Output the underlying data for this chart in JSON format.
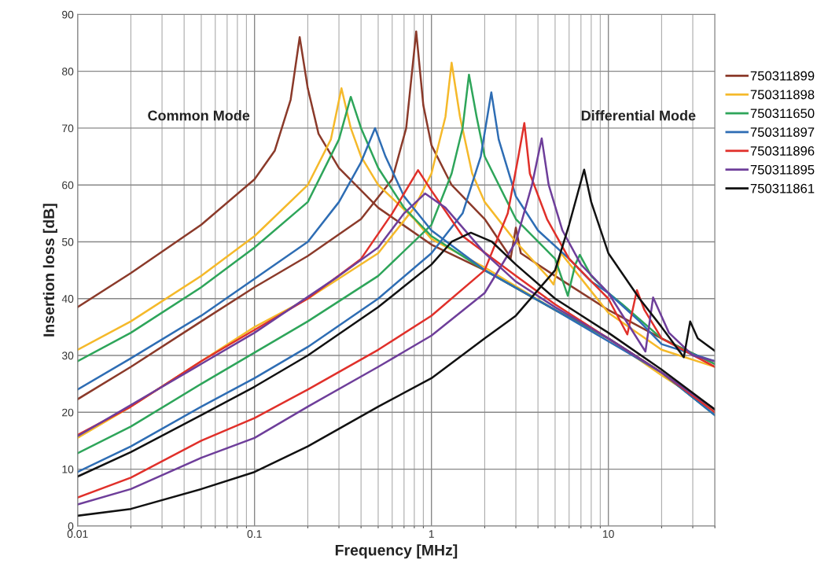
{
  "chart_data": {
    "type": "line",
    "xlabel": "Frequency [MHz]",
    "ylabel": "Insertion loss [dB]",
    "annotations": [
      "Common Mode",
      "Differential Mode"
    ],
    "log": "x",
    "xlim": [
      0.01,
      40
    ],
    "xticks": [
      {
        "value": 0.01,
        "label": "0.01"
      },
      {
        "value": 0.1,
        "label": "0.1"
      },
      1,
      10
    ],
    "ylim": [
      0,
      90
    ],
    "yticks": [
      0,
      10,
      20,
      30,
      40,
      50,
      60,
      70,
      80,
      90
    ],
    "grid": true,
    "legend": "right",
    "marker": "none",
    "line_style": "solid",
    "series": [
      {
        "name": "750311899",
        "color": "#8b3a2a",
        "x": [
          0.01,
          0.02,
          0.05,
          0.1,
          0.13,
          0.16,
          0.18,
          0.2,
          0.23,
          0.3,
          0.5,
          1,
          2,
          5,
          10,
          20,
          40
        ],
        "values": [
          38.5,
          44.5,
          53,
          61,
          66,
          75,
          86,
          77,
          69,
          63,
          56,
          49.5,
          45,
          38,
          33,
          27,
          20.5
        ]
      },
      {
        "color": "#8b3a2a",
        "x": [
          0.01,
          0.02,
          0.05,
          0.1,
          0.2,
          0.4,
          0.6,
          0.72,
          0.82,
          0.9,
          1,
          1.3,
          2,
          2.7,
          2.8,
          3.0,
          3.2,
          5,
          10,
          20,
          40
        ],
        "values": [
          22.3,
          28,
          36,
          42,
          47.5,
          54,
          61,
          70,
          87,
          74,
          67,
          60,
          54,
          48,
          47,
          52.5,
          48,
          44,
          38,
          33,
          28.5
        ]
      },
      {
        "name": "750311898",
        "color": "#f5b92a",
        "x": [
          0.01,
          0.02,
          0.05,
          0.1,
          0.2,
          0.27,
          0.31,
          0.35,
          0.4,
          0.5,
          0.8,
          1,
          2,
          5,
          10,
          20,
          40
        ],
        "values": [
          31,
          36,
          44,
          51,
          60,
          68,
          77,
          70,
          65,
          60,
          54,
          50.5,
          45.5,
          38,
          33,
          26.5,
          20.5
        ]
      },
      {
        "color": "#f5b92a",
        "x": [
          0.01,
          0.02,
          0.05,
          0.1,
          0.2,
          0.5,
          0.8,
          1,
          1.2,
          1.3,
          1.45,
          1.7,
          2,
          3,
          4.5,
          4.9,
          5.4,
          10,
          20,
          40
        ],
        "values": [
          15.5,
          21,
          29,
          35,
          40,
          48,
          56,
          62,
          72,
          81.5,
          72,
          62,
          57,
          50,
          44,
          42.5,
          48,
          37.5,
          31,
          28
        ]
      },
      {
        "name": "750311650",
        "color": "#2ea55a",
        "x": [
          0.01,
          0.02,
          0.05,
          0.1,
          0.2,
          0.3,
          0.35,
          0.4,
          0.5,
          0.7,
          1,
          2,
          5,
          10,
          20,
          40
        ],
        "values": [
          29,
          34,
          42,
          49,
          57,
          68,
          75.5,
          70,
          63,
          56,
          51,
          45,
          38,
          33,
          27,
          19.5
        ]
      },
      {
        "color": "#2ea55a",
        "x": [
          0.01,
          0.02,
          0.05,
          0.1,
          0.2,
          0.5,
          1,
          1.3,
          1.5,
          1.63,
          1.8,
          2,
          3,
          5,
          5.9,
          6.5,
          6.9,
          8,
          10,
          12,
          20,
          40
        ],
        "values": [
          12.8,
          17.5,
          25,
          30.5,
          36,
          44,
          53,
          62,
          70,
          79.4,
          72,
          65,
          54,
          47,
          40.5,
          46,
          47.7,
          44,
          41,
          39,
          33,
          28.5
        ]
      },
      {
        "name": "750311897",
        "color": "#2e6db4",
        "x": [
          0.01,
          0.02,
          0.05,
          0.1,
          0.2,
          0.3,
          0.4,
          0.48,
          0.55,
          0.7,
          1,
          2,
          5,
          10,
          20,
          40
        ],
        "values": [
          24,
          29.5,
          37,
          43.5,
          50,
          57,
          64,
          70,
          65,
          58,
          52,
          45,
          38,
          32.5,
          27,
          19.5
        ]
      },
      {
        "color": "#2e6db4",
        "x": [
          0.01,
          0.02,
          0.05,
          0.1,
          0.2,
          0.5,
          1,
          1.5,
          1.9,
          2.18,
          2.4,
          3,
          4,
          6,
          8,
          10,
          15,
          20,
          40
        ],
        "values": [
          9.5,
          14,
          21,
          26,
          31.5,
          40,
          48,
          55,
          65,
          76.3,
          68,
          58,
          52,
          47,
          43,
          41,
          36,
          32,
          29
        ]
      },
      {
        "name": "750311896",
        "color": "#e0302a",
        "x": [
          0.01,
          0.02,
          0.05,
          0.1,
          0.2,
          0.4,
          0.6,
          0.84,
          1,
          1.5,
          3,
          5,
          10,
          20,
          40
        ],
        "values": [
          16,
          21,
          29,
          34.5,
          40,
          47,
          55,
          62.6,
          59,
          51,
          44,
          39,
          33,
          27,
          20
        ]
      },
      {
        "color": "#e0302a",
        "x": [
          0.01,
          0.02,
          0.05,
          0.1,
          0.2,
          0.5,
          1,
          2,
          2.7,
          3.1,
          3.35,
          3.6,
          4.5,
          6,
          10,
          12.8,
          14.5,
          16,
          20,
          40
        ],
        "values": [
          5,
          8.5,
          15,
          19,
          24,
          31,
          37,
          45,
          55,
          65,
          70.9,
          62,
          54,
          47,
          40,
          33.7,
          41.5,
          38,
          33,
          28
        ]
      },
      {
        "name": "750311895",
        "color": "#6e3e9a",
        "x": [
          0.01,
          0.1,
          0.3,
          0.5,
          0.7,
          0.92,
          1.2,
          2,
          3,
          5,
          10,
          20,
          40
        ],
        "values": [
          15.8,
          34,
          44,
          49,
          55,
          58.5,
          56,
          48,
          43,
          38.5,
          33,
          27,
          20.5
        ]
      },
      {
        "color": "#6e3e9a",
        "x": [
          0.01,
          0.02,
          0.05,
          0.1,
          0.2,
          0.5,
          1,
          2,
          3,
          3.7,
          4.2,
          4.6,
          5.5,
          7,
          10,
          16.2,
          17.9,
          22,
          30,
          40
        ],
        "values": [
          3.8,
          6.5,
          12,
          15.5,
          21,
          28,
          33.5,
          41,
          50,
          60,
          68.2,
          60,
          52,
          46,
          41,
          30.7,
          40.2,
          34,
          30,
          29
        ]
      },
      {
        "name": "750311861",
        "color": "#111111",
        "x": [
          0.01,
          0.02,
          0.05,
          0.1,
          0.2,
          0.5,
          1,
          1.3,
          1.67,
          2.2,
          3,
          5,
          10,
          20,
          40
        ],
        "values": [
          8.7,
          13,
          19.5,
          24.5,
          30,
          38.5,
          46,
          50,
          51.6,
          50,
          46,
          40,
          34,
          27.5,
          20.5
        ]
      },
      {
        "color": "#111111",
        "x": [
          0.01,
          0.02,
          0.05,
          0.1,
          0.2,
          0.5,
          1,
          2,
          3,
          5,
          6,
          7.3,
          8,
          10,
          15,
          20,
          26.7,
          29,
          32,
          40
        ],
        "values": [
          1.8,
          3,
          6.5,
          9.5,
          14,
          21,
          26,
          33,
          37,
          45,
          53,
          62.7,
          57,
          48,
          40,
          35,
          29.7,
          36,
          33,
          30.8
        ]
      }
    ]
  }
}
